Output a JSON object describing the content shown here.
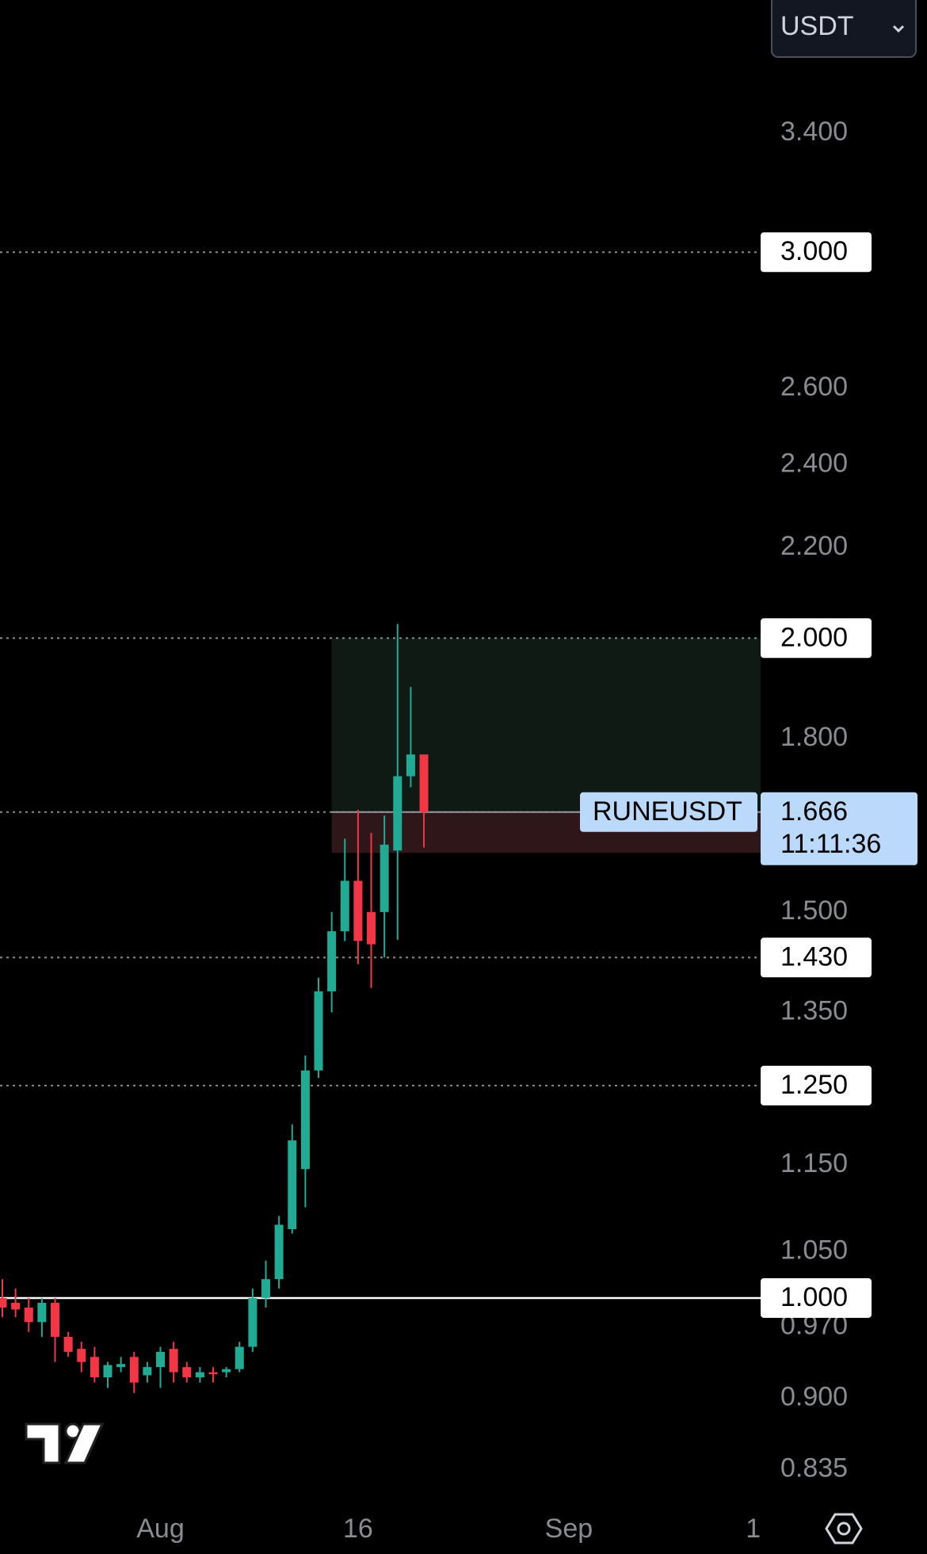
{
  "chart_data": {
    "type": "candlestick",
    "symbol": "RUNEUSDT",
    "currency": "USDT",
    "log_scale": true,
    "x": [
      -11,
      -10,
      -9,
      -8,
      -7,
      -6,
      -5,
      -4,
      -3,
      -2,
      -1,
      0,
      1,
      2,
      3,
      4,
      5,
      6,
      7,
      8,
      9,
      10,
      11,
      12,
      13,
      14,
      15,
      16,
      17,
      18,
      19,
      20,
      21
    ],
    "open": [
      1.0,
      0.995,
      0.99,
      0.975,
      0.995,
      0.96,
      0.948,
      0.94,
      0.92,
      0.93,
      0.94,
      0.922,
      0.93,
      0.948,
      0.93,
      0.92,
      0.925,
      0.925,
      0.928,
      0.95,
      1.0,
      1.02,
      1.075,
      1.145,
      1.27,
      1.38,
      1.47,
      1.55,
      1.5,
      1.5,
      1.6,
      1.73,
      1.77
    ],
    "high": [
      1.02,
      1.01,
      1.0,
      1.0,
      1.0,
      0.965,
      0.955,
      0.95,
      0.935,
      0.94,
      0.945,
      0.935,
      0.95,
      0.955,
      0.935,
      0.93,
      0.93,
      0.93,
      0.955,
      1.01,
      1.04,
      1.09,
      1.2,
      1.29,
      1.4,
      1.5,
      1.62,
      1.67,
      1.63,
      1.66,
      2.03,
      1.9,
      1.77
    ],
    "low": [
      0.98,
      0.98,
      0.965,
      0.96,
      0.935,
      0.94,
      0.925,
      0.915,
      0.91,
      0.925,
      0.905,
      0.915,
      0.91,
      0.915,
      0.915,
      0.915,
      0.915,
      0.92,
      0.925,
      0.945,
      0.99,
      1.01,
      1.07,
      1.1,
      1.26,
      1.35,
      1.455,
      1.42,
      1.385,
      1.43,
      1.457,
      1.71,
      1.605
    ],
    "close": [
      0.99,
      0.988,
      0.975,
      0.995,
      0.96,
      0.945,
      0.935,
      0.92,
      0.932,
      0.933,
      0.915,
      0.93,
      0.945,
      0.925,
      0.92,
      0.925,
      0.923,
      0.928,
      0.95,
      1.0,
      1.02,
      1.08,
      1.18,
      1.27,
      1.38,
      1.47,
      1.55,
      1.455,
      1.45,
      1.61,
      1.73,
      1.77,
      1.666
    ],
    "up_color": "#22ab94",
    "down_color": "#f23645",
    "xlim": [
      -11.18,
      46.56
    ],
    "xticks": [
      {
        "value": 1,
        "label": "Aug"
      },
      16,
      {
        "value": 32,
        "label": "Sep"
      },
      {
        "value": 46,
        "label": "1"
      }
    ],
    "ylim": [
      0.804,
      3.91
    ],
    "yticks": [
      {
        "value": 3.4,
        "label": "3.400"
      },
      {
        "value": 2.6,
        "label": "2.600"
      },
      {
        "value": 2.4,
        "label": "2.400"
      },
      {
        "value": 2.2,
        "label": "2.200"
      },
      {
        "value": 1.8,
        "label": "1.800"
      },
      {
        "value": 1.5,
        "label": "1.500"
      },
      {
        "value": 1.35,
        "label": "1.350"
      },
      {
        "value": 1.15,
        "label": "1.150"
      },
      {
        "value": 1.05,
        "label": "1.050"
      },
      {
        "value": 0.97,
        "label": "0.970"
      },
      {
        "value": 0.9,
        "label": "0.900"
      },
      {
        "value": 0.835,
        "label": "0.835"
      }
    ],
    "levels": [
      {
        "value": 3,
        "label": "3.000",
        "style": "dotted"
      },
      {
        "value": 2,
        "label": "2.000",
        "style": "dotted"
      },
      {
        "value": 1.43,
        "label": "1.430",
        "style": "dotted"
      },
      {
        "value": 1.25,
        "label": "1.250",
        "style": "dotted"
      },
      {
        "value": 1,
        "label": "1.000",
        "style": "solid"
      }
    ],
    "position": {
      "x_start": 14,
      "target": 2,
      "entry": 1.666,
      "stop": 1.596
    },
    "last_price": 1.666,
    "countdown": "11:11:36"
  }
}
